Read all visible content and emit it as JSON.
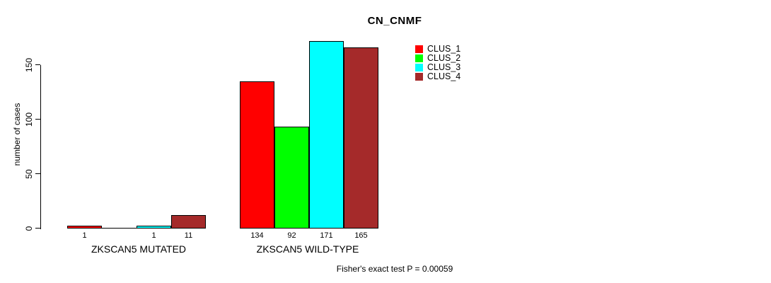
{
  "chart_data": {
    "type": "bar",
    "title": "CN_CNMF",
    "ylabel": "number of cases",
    "xlabel": "",
    "yticks": [
      0,
      50,
      100,
      150
    ],
    "ylim": [
      0,
      175
    ],
    "grid": false,
    "legend_position": "top-right",
    "categories": [
      "ZKSCAN5 MUTATED",
      "ZKSCAN5 WILD-TYPE"
    ],
    "series": [
      {
        "name": "CLUS_1",
        "color": "#ff0000",
        "values": [
          1,
          134
        ]
      },
      {
        "name": "CLUS_2",
        "color": "#00ff00",
        "values": [
          0,
          92
        ]
      },
      {
        "name": "CLUS_3",
        "color": "#00ffff",
        "values": [
          1,
          171
        ]
      },
      {
        "name": "CLUS_4",
        "color": "#a52a2a",
        "values": [
          11,
          165
        ]
      }
    ],
    "bar_value_labels": [
      [
        "1",
        "",
        "1",
        "11"
      ],
      [
        "134",
        "92",
        "171",
        "165"
      ]
    ],
    "annotation": "Fisher's exact test P = 0.00059"
  }
}
